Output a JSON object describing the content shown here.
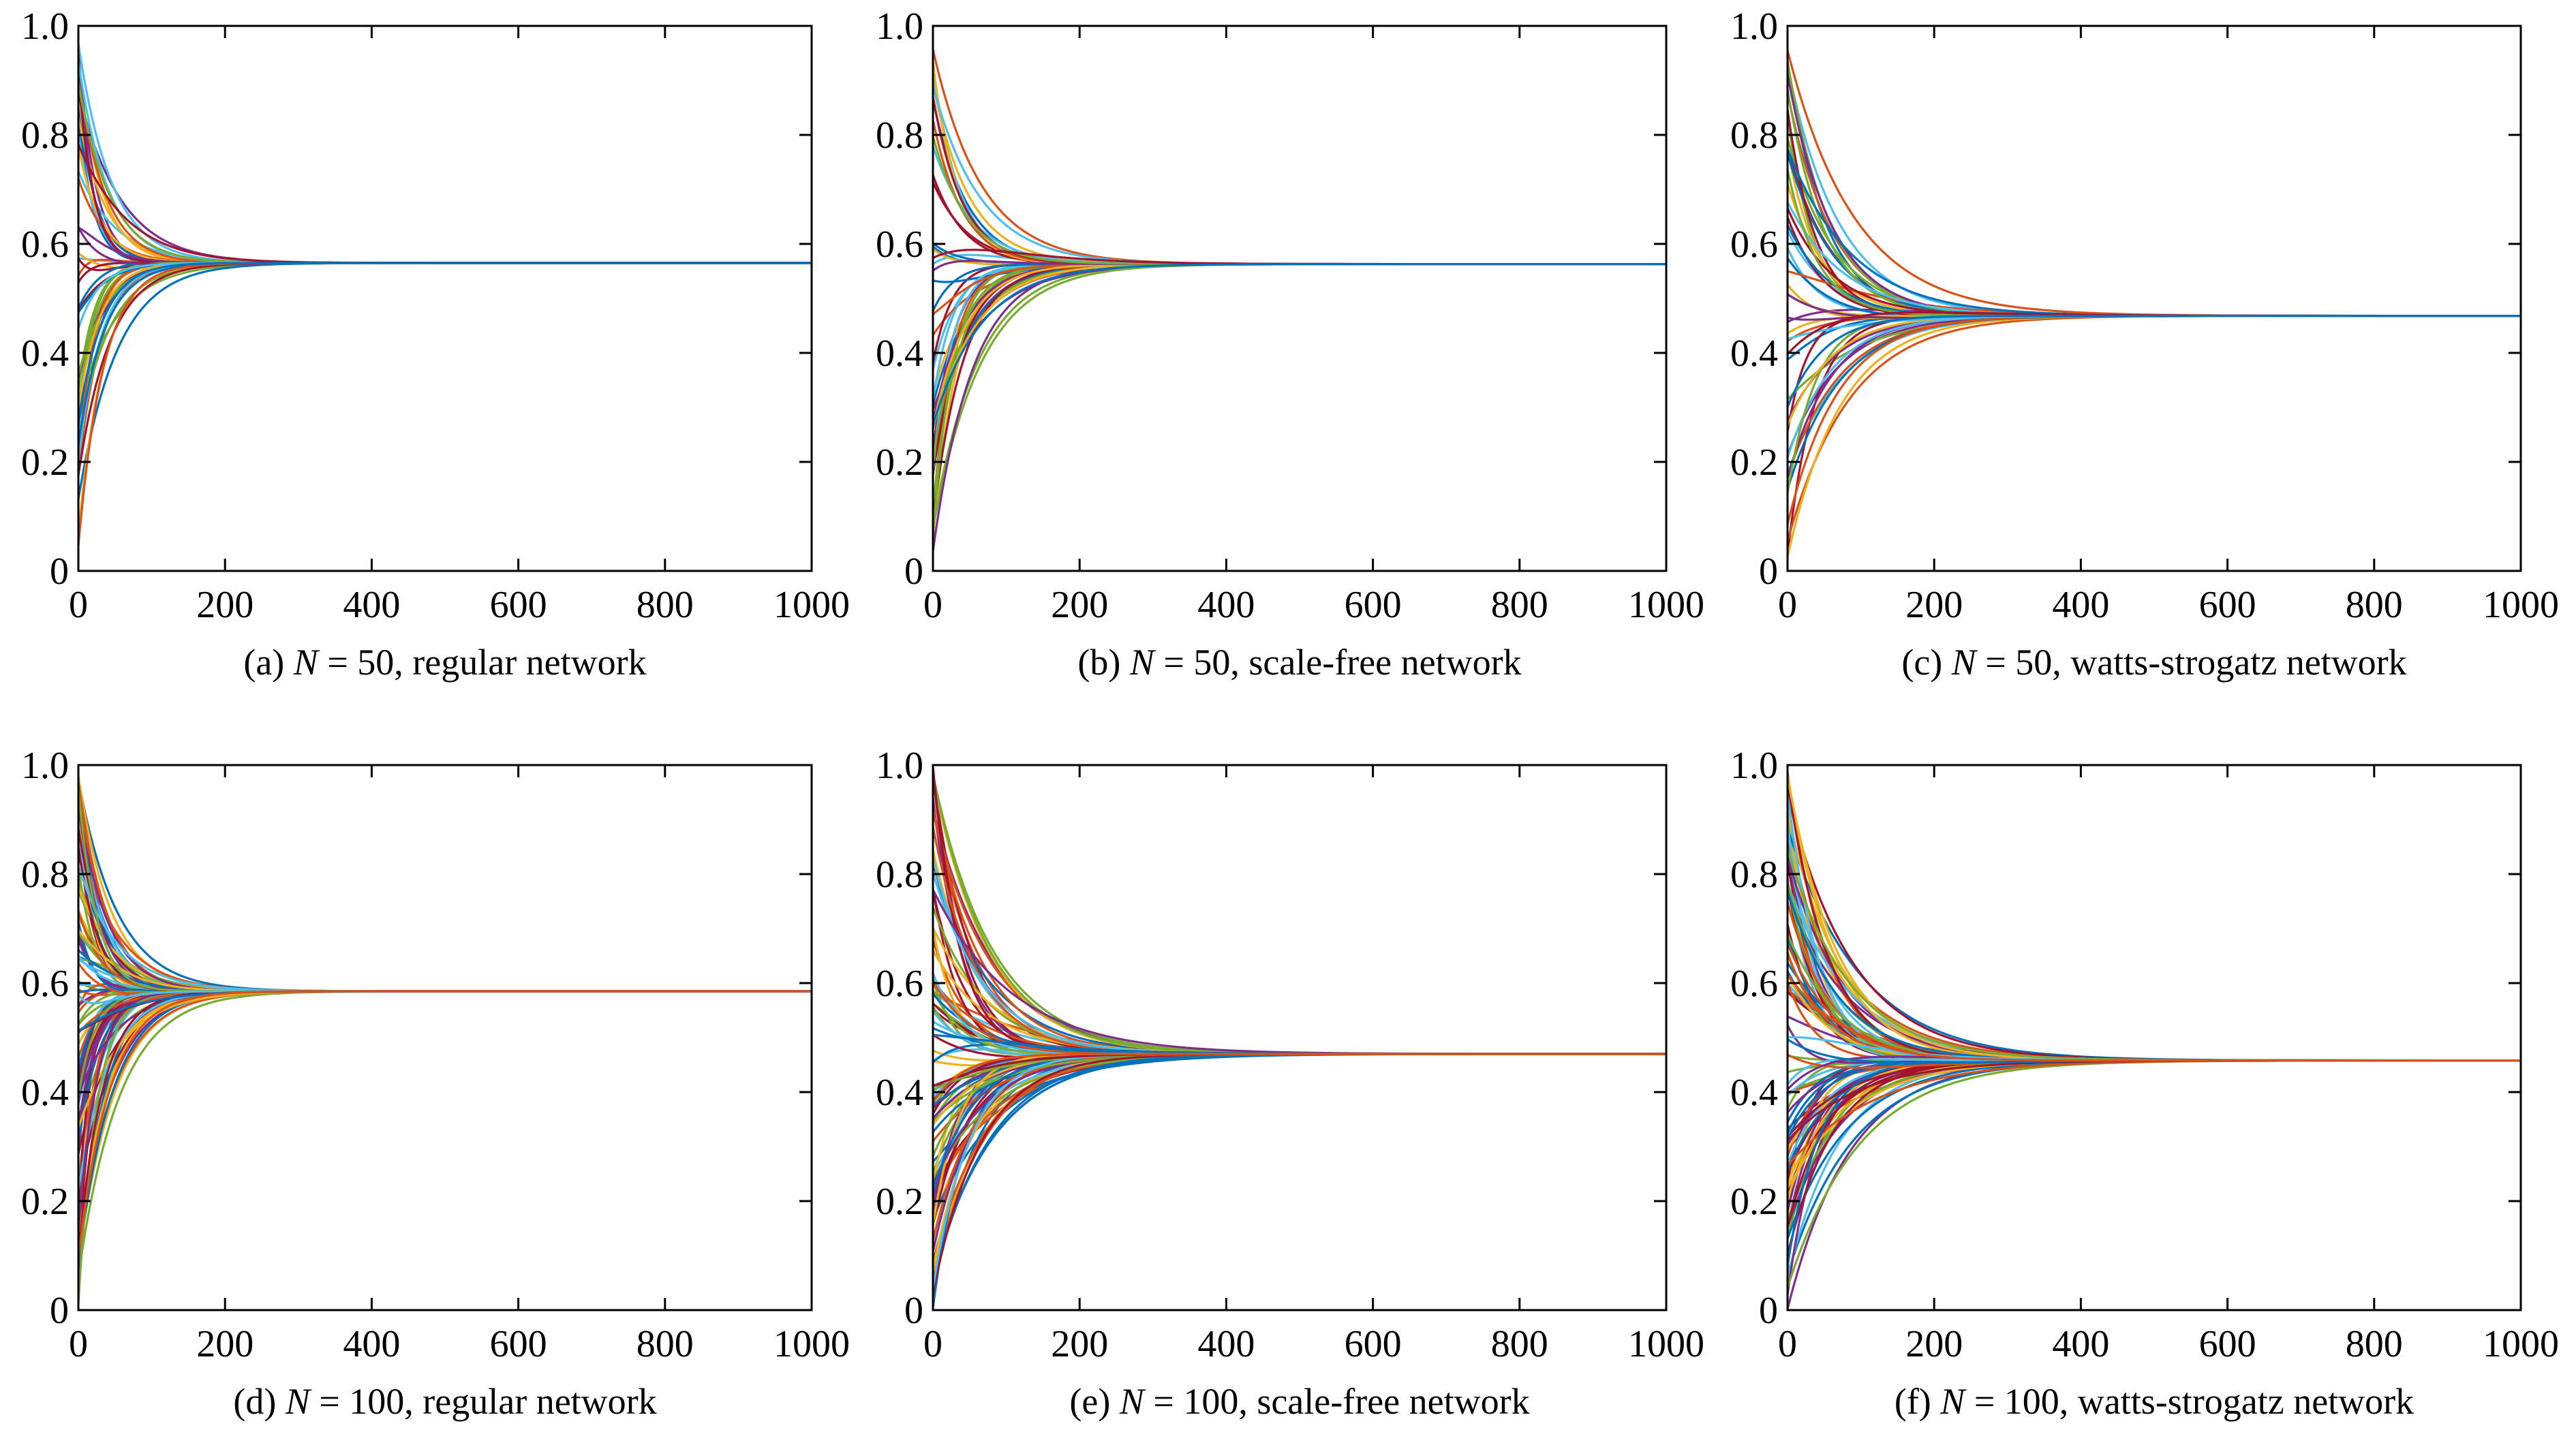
{
  "chart_data": [
    {
      "type": "line",
      "caption": {
        "prefix": "(a) ",
        "var": "N",
        "text": " = 50, regular network"
      },
      "xlim": [
        0,
        1000
      ],
      "ylim": [
        0,
        1
      ],
      "xticks": [
        "0",
        "200",
        "400",
        "600",
        "800",
        "1000"
      ],
      "yticks": [
        "0",
        "0.2",
        "0.4",
        "0.6",
        "0.8",
        "1.0"
      ],
      "grid": false,
      "legend": "none",
      "n_series": 50,
      "steady_state": 0.565,
      "initial_range": [
        0.04,
        0.97
      ],
      "convergence_x": 150
    },
    {
      "type": "line",
      "caption": {
        "prefix": "(b) ",
        "var": "N",
        "text": " = 50, scale-free network"
      },
      "xlim": [
        0,
        1000
      ],
      "ylim": [
        0,
        1
      ],
      "xticks": [
        "0",
        "200",
        "400",
        "600",
        "800",
        "1000"
      ],
      "yticks": [
        "0",
        "0.2",
        "0.4",
        "0.6",
        "0.8",
        "1.0"
      ],
      "grid": false,
      "legend": "none",
      "n_series": 50,
      "steady_state": 0.563,
      "initial_range": [
        0.01,
        0.96
      ],
      "convergence_x": 200
    },
    {
      "type": "line",
      "caption": {
        "prefix": "(c) ",
        "var": "N",
        "text": " = 50, watts-strogatz network"
      },
      "xlim": [
        0,
        1000
      ],
      "ylim": [
        0,
        1
      ],
      "xticks": [
        "0",
        "200",
        "400",
        "600",
        "800",
        "1000"
      ],
      "yticks": [
        "0",
        "0.2",
        "0.4",
        "0.6",
        "0.8",
        "1.0"
      ],
      "grid": false,
      "legend": "none",
      "n_series": 50,
      "steady_state": 0.468,
      "initial_range": [
        0.02,
        0.99
      ],
      "convergence_x": 250
    },
    {
      "type": "line",
      "caption": {
        "prefix": "(d) ",
        "var": "N",
        "text": " = 100, regular network"
      },
      "xlim": [
        0,
        1000
      ],
      "ylim": [
        0,
        1
      ],
      "xticks": [
        "0",
        "200",
        "400",
        "600",
        "800",
        "1000"
      ],
      "yticks": [
        "0",
        "0.2",
        "0.4",
        "0.6",
        "0.8",
        "1.0"
      ],
      "grid": false,
      "legend": "none",
      "n_series": 100,
      "steady_state": 0.585,
      "initial_range": [
        0.01,
        0.99
      ],
      "convergence_x": 160
    },
    {
      "type": "line",
      "caption": {
        "prefix": "(e) ",
        "var": "N",
        "text": " = 100, scale-free network"
      },
      "xlim": [
        0,
        1000
      ],
      "ylim": [
        0,
        1
      ],
      "xticks": [
        "0",
        "200",
        "400",
        "600",
        "800",
        "1000"
      ],
      "yticks": [
        "0",
        "0.2",
        "0.4",
        "0.6",
        "0.8",
        "1.0"
      ],
      "grid": false,
      "legend": "none",
      "n_series": 100,
      "steady_state": 0.47,
      "initial_range": [
        0.0,
        1.0
      ],
      "convergence_x": 280
    },
    {
      "type": "line",
      "caption": {
        "prefix": "(f) ",
        "var": "N",
        "text": " = 100, watts-strogatz network"
      },
      "xlim": [
        0,
        1000
      ],
      "ylim": [
        0,
        1
      ],
      "xticks": [
        "0",
        "200",
        "400",
        "600",
        "800",
        "1000"
      ],
      "yticks": [
        "0",
        "0.2",
        "0.4",
        "0.6",
        "0.8",
        "1.0"
      ],
      "grid": false,
      "legend": "none",
      "n_series": 100,
      "steady_state": 0.458,
      "initial_range": [
        0.0,
        1.0
      ],
      "convergence_x": 270
    }
  ],
  "colors": {
    "series_palette": [
      "#0072BD",
      "#D95319",
      "#EDB120",
      "#7E2F8E",
      "#77AC30",
      "#4DBEEE",
      "#A2142F"
    ],
    "axis": "#000000",
    "background": "#ffffff"
  }
}
